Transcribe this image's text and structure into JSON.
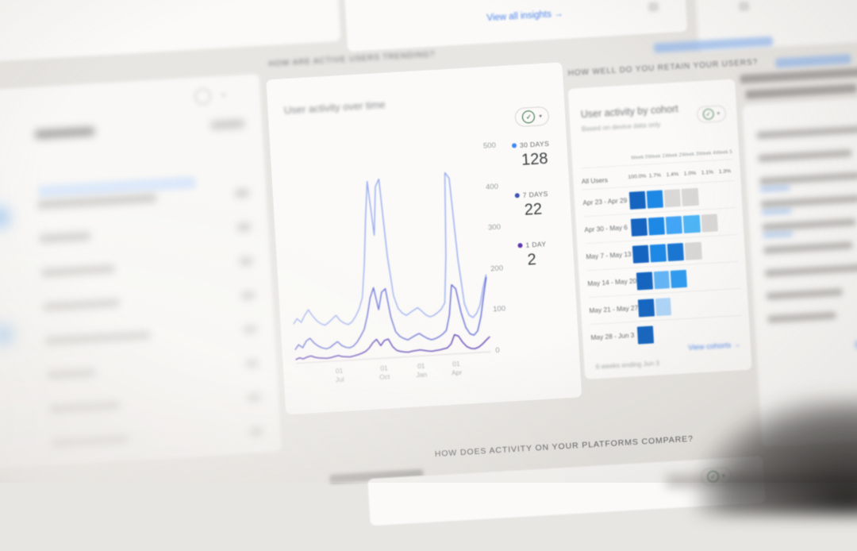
{
  "page": {
    "background": "#e8e6e2"
  },
  "top_bar": {
    "view_all_insights": "View all insights",
    "arrow_icon": "→"
  },
  "section_headers": {
    "trending": "HOW ARE ACTIVE USERS TRENDING?",
    "retention": "HOW WELL DO YOU RETAIN YOUR USERS?",
    "platforms": "HOW DOES ACTIVITY ON YOUR PLATFORMS COMPARE?"
  },
  "activity_card": {
    "title": "User activity over time",
    "insight_check_icon": "✓",
    "dropdown_caret": "▾",
    "legend": [
      {
        "label": "30 DAYS",
        "value": "128",
        "dot_color": "#4285f4"
      },
      {
        "label": "7 DAYS",
        "value": "22",
        "dot_color": "#3f51b5"
      },
      {
        "label": "1 DAY",
        "value": "2",
        "dot_color": "#5e35b1"
      }
    ]
  },
  "chart_data": {
    "type": "line",
    "title": "User activity over time",
    "ylim": [
      0,
      500
    ],
    "yticks": [
      0,
      100,
      200,
      300,
      400,
      500
    ],
    "grid": false,
    "legend_position": "right",
    "xticks": [
      {
        "label": "01 Jul",
        "pos": 0.22
      },
      {
        "label": "01 Oct",
        "pos": 0.45
      },
      {
        "label": "01 Jan",
        "pos": 0.64
      },
      {
        "label": "01 Apr",
        "pos": 0.82
      }
    ],
    "series": [
      {
        "name": "30 DAYS",
        "color": "#96aaf0",
        "values": [
          95,
          108,
          98,
          115,
          128,
          112,
          100,
          92,
          88,
          94,
          102,
          110,
          97,
          90,
          86,
          92,
          105,
          122,
          150,
          230,
          340,
          432,
          300,
          418,
          436,
          250,
          150,
          118,
          106,
          100,
          106,
          112,
          117,
          108,
          98,
          93,
          96,
          102,
          110,
          125,
          240,
          442,
          428,
          230,
          120,
          92,
          85,
          95,
          115,
          155,
          188
        ]
      },
      {
        "name": "7 DAYS",
        "color": "#5a64d2",
        "values": [
          32,
          44,
          36,
          52,
          58,
          46,
          38,
          33,
          30,
          33,
          40,
          46,
          36,
          31,
          29,
          33,
          42,
          56,
          72,
          105,
          148,
          172,
          118,
          160,
          168,
          98,
          62,
          50,
          44,
          40,
          45,
          50,
          54,
          47,
          41,
          37,
          39,
          43,
          49,
          58,
          95,
          168,
          158,
          100,
          62,
          46,
          42,
          52,
          85,
          135,
          182
        ]
      },
      {
        "name": "1 DAY",
        "color": "#4b2fae",
        "values": [
          8,
          12,
          9,
          13,
          15,
          11,
          9,
          8,
          7,
          8,
          10,
          12,
          9,
          8,
          7,
          9,
          11,
          14,
          18,
          26,
          38,
          46,
          30,
          42,
          45,
          26,
          16,
          13,
          11,
          10,
          12,
          13,
          14,
          12,
          10,
          9,
          10,
          11,
          13,
          15,
          24,
          46,
          42,
          26,
          15,
          10,
          9,
          12,
          19,
          28,
          36
        ]
      }
    ]
  },
  "cohort_card": {
    "title": "User activity by cohort",
    "subtitle": "Based on device data only",
    "insight_check_icon": "✓",
    "dropdown_caret": "▾",
    "week_headers": [
      "Week 0",
      "Week 1",
      "Week 2",
      "Week 3",
      "Week 4",
      "Week 5"
    ],
    "all_users_row": {
      "label": "All Users",
      "values": [
        "100.0%",
        "1.7%",
        "1.4%",
        "1.0%",
        "1.1%",
        "1.3%"
      ]
    },
    "rows": [
      {
        "label": "Apr 23 - Apr 29",
        "cells": [
          "#1565c0",
          "#1e88e5",
          "#d9d8d6",
          "#d9d8d6",
          null,
          null
        ]
      },
      {
        "label": "Apr 30 - May 6",
        "cells": [
          "#1565c0",
          "#1e88e5",
          "#42a5f5",
          "#4db5f5",
          "#d9d8d6",
          null
        ]
      },
      {
        "label": "May 7 - May 13",
        "cells": [
          "#1565c0",
          "#1e88e5",
          "#1976d2",
          "#d9d8d6",
          null,
          null
        ]
      },
      {
        "label": "May 14 - May 20",
        "cells": [
          "#1565c0",
          "#64b5f6",
          "#2f9bf0",
          null,
          null,
          null
        ]
      },
      {
        "label": "May 21 - May 27",
        "cells": [
          "#1565c0",
          "#aed5f8",
          null,
          null,
          null,
          null
        ]
      },
      {
        "label": "May 28 - Jun 3",
        "cells": [
          "#1565c0",
          null,
          null,
          null,
          null,
          null
        ]
      }
    ],
    "footer": "6 weeks ending Jun 3",
    "view_cohorts": "View cohorts",
    "arrow_icon": "→"
  }
}
